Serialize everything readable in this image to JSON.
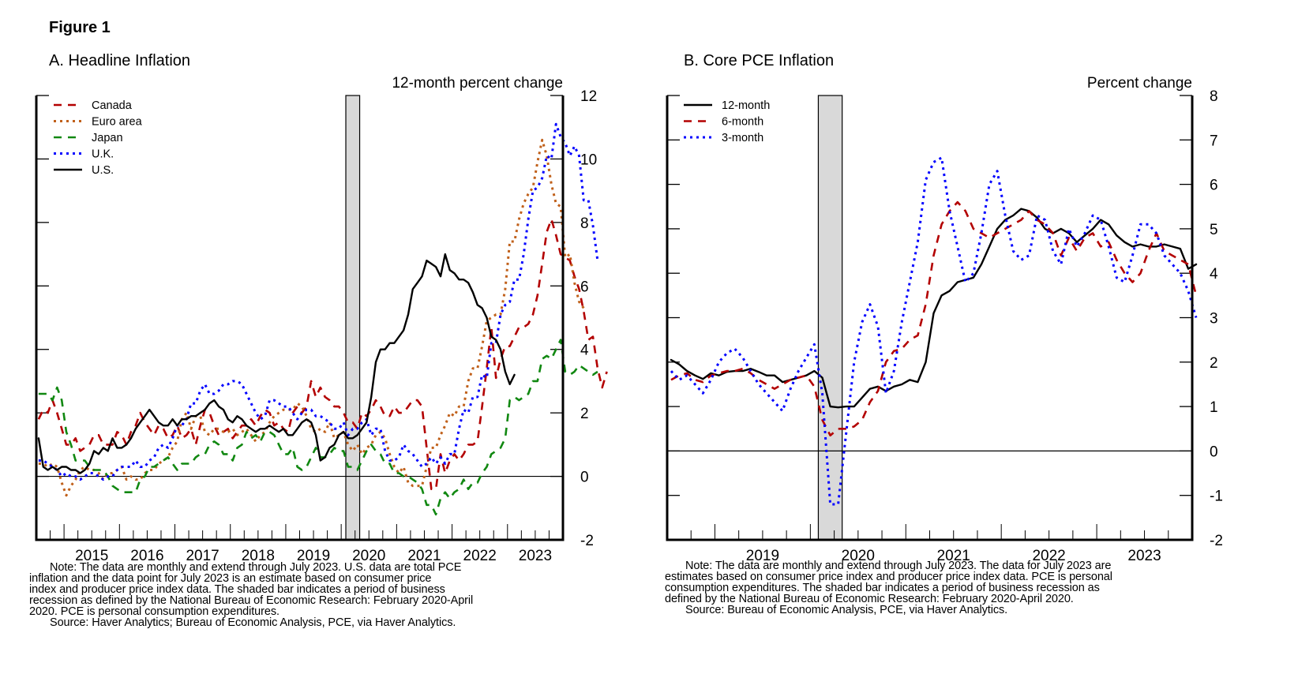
{
  "figure_title": "Figure 1",
  "chart_data": [
    {
      "id": "A",
      "type": "line",
      "title": "A. Headline Inflation",
      "ylabel": "12-month percent change",
      "xlabel": "",
      "ylim": [
        -2,
        12
      ],
      "yticks": [
        "12",
        "10",
        "8",
        "6",
        "4",
        "2",
        "0",
        "-2"
      ],
      "ytick_values": [
        12,
        10,
        8,
        6,
        4,
        2,
        0,
        -2
      ],
      "xlim": [
        "2014-07",
        "2023-12"
      ],
      "xtick_labels": [
        "2015",
        "2016",
        "2017",
        "2018",
        "2019",
        "2020",
        "2021",
        "2022",
        "2023"
      ],
      "recession": {
        "start": "2020-02",
        "end": "2020-04"
      },
      "legend_position": "top-left",
      "start_month": "2014-07",
      "series": [
        {
          "name": "Canada",
          "color": "#b30000",
          "style": "dashed",
          "values": [
            1.8,
            2.1,
            2.0,
            2.4,
            2.0,
            1.5,
            1.0,
            1.0,
            1.2,
            0.8,
            0.9,
            1.0,
            1.3,
            1.3,
            1.0,
            1.0,
            1.0,
            1.4,
            1.3,
            1.0,
            1.4,
            1.6,
            2.0,
            1.7,
            1.5,
            1.3,
            1.6,
            1.5,
            1.2,
            1.3,
            1.6,
            1.2,
            1.3,
            1.5,
            1.0,
            1.6,
            2.1,
            2.0,
            1.6,
            1.3,
            1.4,
            1.5,
            1.2,
            1.4,
            1.6,
            1.6,
            1.8,
            1.6,
            1.9,
            2.1,
            2.0,
            1.6,
            1.7,
            1.5,
            1.4,
            2.0,
            2.2,
            2.0,
            2.2,
            3.0,
            2.5,
            2.8,
            2.5,
            2.4,
            2.2,
            2.2,
            2.0,
            1.7,
            1.7,
            1.5,
            2.0,
            1.9,
            2.1,
            2.4,
            2.2,
            1.9,
            1.9,
            2.2,
            2.0,
            2.0,
            2.2,
            2.4,
            2.4,
            2.2,
            0.9,
            -0.4,
            -0.4,
            0.7,
            0.1,
            0.5,
            0.7,
            0.5,
            0.7,
            1.0,
            1.0,
            1.1,
            2.2,
            3.4,
            4.7,
            3.1,
            3.7,
            4.1,
            4.1,
            4.4,
            4.7,
            4.7,
            4.8,
            5.1,
            5.7,
            6.7,
            7.7,
            8.1,
            7.6,
            7.0,
            6.9,
            6.8,
            6.3,
            5.9,
            5.2,
            4.3,
            4.4,
            3.4,
            2.8,
            3.3
          ]
        },
        {
          "name": "Euro area",
          "color": "#c0601a",
          "style": "dotted",
          "values": [
            0.4,
            0.4,
            0.3,
            0.4,
            0.3,
            -0.2,
            -0.6,
            -0.3,
            -0.1,
            0.2,
            0.3,
            0.2,
            0.2,
            0.1,
            -0.1,
            0.1,
            0.1,
            0.2,
            0.3,
            -0.1,
            0.0,
            -0.1,
            -0.1,
            0.1,
            0.2,
            0.2,
            0.4,
            0.5,
            0.6,
            0.9,
            1.1,
            1.8,
            2.0,
            1.5,
            1.9,
            1.9,
            1.4,
            1.3,
            1.5,
            1.5,
            1.4,
            1.4,
            1.5,
            1.3,
            1.4,
            1.5,
            1.3,
            1.1,
            1.3,
            1.4,
            1.7,
            1.9,
            2.0,
            2.1,
            2.1,
            2.1,
            2.3,
            2.2,
            1.9,
            1.5,
            1.4,
            1.5,
            1.4,
            1.7,
            1.2,
            1.3,
            1.4,
            1.0,
            0.8,
            1.0,
            0.7,
            0.9,
            1.0,
            1.3,
            1.4,
            1.2,
            0.7,
            0.3,
            0.1,
            0.3,
            -0.2,
            -0.3,
            -0.3,
            -0.3,
            0.3,
            0.9,
            0.9,
            1.3,
            1.6,
            2.0,
            1.9,
            2.2,
            2.2,
            3.0,
            3.4,
            3.4,
            4.1,
            4.9,
            5.0,
            5.1,
            5.1,
            5.9,
            7.4,
            7.4,
            8.1,
            8.6,
            8.9,
            9.1,
            9.9,
            10.6,
            10.1,
            9.2,
            8.6,
            8.5,
            6.9,
            7.0,
            6.1,
            5.5,
            5.3
          ]
        },
        {
          "name": "Japan",
          "color": "#118811",
          "style": "dashed",
          "values": [
            2.6,
            2.6,
            2.6,
            2.4,
            2.8,
            2.4,
            1.4,
            1.0,
            0.5,
            0.5,
            0.5,
            0.3,
            0.2,
            0.2,
            0.2,
            0.0,
            -0.3,
            -0.4,
            -0.5,
            -0.5,
            -0.5,
            -0.5,
            -0.1,
            0.0,
            0.3,
            0.3,
            0.4,
            0.5,
            0.6,
            0.4,
            0.2,
            0.4,
            0.4,
            0.4,
            0.6,
            0.7,
            0.7,
            1.0,
            1.1,
            1.0,
            0.7,
            0.7,
            0.5,
            0.9,
            1.0,
            1.4,
            1.2,
            1.3,
            1.1,
            1.4,
            1.4,
            1.3,
            1.0,
            0.7,
            0.7,
            0.9,
            0.3,
            0.2,
            0.3,
            0.6,
            0.9,
            0.6,
            0.6,
            0.7,
            0.9,
            0.8,
            0.8,
            0.3,
            0.3,
            0.2,
            0.5,
            0.8,
            1.0,
            0.8,
            0.7,
            0.4,
            0.4,
            0.1,
            0.1,
            0.0,
            0.0,
            -0.1,
            -0.2,
            -0.4,
            -0.9,
            -0.9,
            -1.2,
            -0.7,
            -0.5,
            -0.7,
            -0.5,
            -0.4,
            -0.1,
            -0.4,
            -0.2,
            -0.2,
            0.1,
            0.3,
            0.7,
            0.8,
            0.9,
            1.2,
            2.4,
            2.5,
            2.4,
            2.5,
            2.6,
            3.0,
            3.0,
            3.7,
            3.8,
            3.7,
            4.0,
            4.3,
            3.3,
            3.2,
            3.3,
            3.5,
            3.4,
            3.3,
            3.2,
            3.3
          ]
        },
        {
          "name": "U.K.",
          "color": "#0000ff",
          "style": "dotted",
          "values": [
            0.5,
            0.5,
            0.4,
            0.3,
            0.2,
            0.0,
            0.1,
            0.0,
            0.0,
            -0.1,
            0.0,
            0.1,
            0.1,
            0.0,
            -0.1,
            0.0,
            0.0,
            0.2,
            0.3,
            0.3,
            0.3,
            0.5,
            0.3,
            0.3,
            0.5,
            0.6,
            0.9,
            1.0,
            0.9,
            1.2,
            1.6,
            1.6,
            1.8,
            2.3,
            2.3,
            2.7,
            2.9,
            2.6,
            2.6,
            2.7,
            2.9,
            2.9,
            3.0,
            3.0,
            2.9,
            2.6,
            2.3,
            2.0,
            1.8,
            1.9,
            2.4,
            2.4,
            2.3,
            2.2,
            2.2,
            2.0,
            1.8,
            2.0,
            2.1,
            2.1,
            1.9,
            1.9,
            1.8,
            1.7,
            1.5,
            1.5,
            1.7,
            1.3,
            1.5,
            1.5,
            1.7,
            1.8,
            1.3,
            1.5,
            1.5,
            0.8,
            0.5,
            0.5,
            0.6,
            1.0,
            0.8,
            0.7,
            0.5,
            0.3,
            0.4,
            0.6,
            0.4,
            0.6,
            0.4,
            0.7,
            0.7,
            1.5,
            2.1,
            2.0,
            2.5,
            2.5,
            3.2,
            3.1,
            4.2,
            4.2,
            5.1,
            5.4,
            5.5,
            6.2,
            6.2,
            7.0,
            8.1,
            9.0,
            9.1,
            9.4,
            10.1,
            10.0,
            11.1,
            10.7,
            10.5,
            10.1,
            10.4,
            10.1,
            8.7,
            8.7,
            7.9,
            6.8
          ]
        },
        {
          "name": "U.S.",
          "color": "#000000",
          "style": "solid",
          "values": [
            1.2,
            0.3,
            0.2,
            0.3,
            0.2,
            0.3,
            0.3,
            0.2,
            0.2,
            0.1,
            0.2,
            0.4,
            0.8,
            0.7,
            0.9,
            0.8,
            1.2,
            0.9,
            0.9,
            1.0,
            1.2,
            1.5,
            1.7,
            1.9,
            2.1,
            1.9,
            1.7,
            1.6,
            1.6,
            1.8,
            1.6,
            1.8,
            1.8,
            1.9,
            1.9,
            2.0,
            2.1,
            2.3,
            2.4,
            2.2,
            2.1,
            1.8,
            1.7,
            1.9,
            1.8,
            1.6,
            1.5,
            1.4,
            1.5,
            1.5,
            1.6,
            1.5,
            1.4,
            1.5,
            1.3,
            1.3,
            1.5,
            1.7,
            1.8,
            1.7,
            1.3,
            0.5,
            0.6,
            0.9,
            1.0,
            1.3,
            1.4,
            1.2,
            1.2,
            1.3,
            1.5,
            1.7,
            2.5,
            3.6,
            4.0,
            4.0,
            4.2,
            4.2,
            4.4,
            4.6,
            5.1,
            5.9,
            6.1,
            6.3,
            6.8,
            6.7,
            6.6,
            6.3,
            7.0,
            6.5,
            6.4,
            6.2,
            6.2,
            6.1,
            5.8,
            5.4,
            5.3,
            5.0,
            4.4,
            4.3,
            4.0,
            3.3,
            2.9,
            3.2
          ]
        }
      ]
    },
    {
      "id": "B",
      "type": "line",
      "title": "B. Core PCE Inflation",
      "ylabel": "Percent change",
      "xlabel": "",
      "ylim": [
        -2,
        8
      ],
      "yticks": [
        "8",
        "7",
        "6",
        "5",
        "4",
        "3",
        "2",
        "1",
        "0",
        "-1",
        "-2"
      ],
      "ytick_values": [
        8,
        7,
        6,
        5,
        4,
        3,
        2,
        1,
        0,
        -1,
        -2
      ],
      "xlim": [
        "2018-07",
        "2023-12"
      ],
      "xtick_labels": [
        "2019",
        "2020",
        "2021",
        "2022",
        "2023"
      ],
      "recession": {
        "start": "2020-02",
        "end": "2020-04"
      },
      "legend_position": "top-left",
      "start_month": "2018-07",
      "series": [
        {
          "name": "12-month",
          "color": "#000000",
          "style": "solid",
          "values": [
            2.05,
            1.95,
            1.8,
            1.7,
            1.62,
            1.75,
            1.7,
            1.78,
            1.8,
            1.8,
            1.85,
            1.78,
            1.7,
            1.7,
            1.55,
            1.6,
            1.65,
            1.7,
            1.8,
            1.65,
            1.0,
            0.98,
            1.0,
            1.0,
            1.2,
            1.4,
            1.45,
            1.35,
            1.45,
            1.5,
            1.6,
            1.55,
            2.0,
            3.1,
            3.5,
            3.6,
            3.8,
            3.85,
            3.9,
            4.2,
            4.6,
            5.0,
            5.2,
            5.3,
            5.45,
            5.4,
            5.25,
            5.0,
            4.9,
            5.0,
            4.9,
            4.7,
            4.85,
            5.0,
            5.2,
            5.1,
            4.85,
            4.7,
            4.6,
            4.65,
            4.6,
            4.6,
            4.65,
            4.6,
            4.55,
            4.1,
            4.2
          ]
        },
        {
          "name": "6-month",
          "color": "#b30000",
          "style": "dashed",
          "values": [
            1.6,
            1.7,
            1.75,
            1.6,
            1.55,
            1.7,
            1.75,
            1.8,
            1.8,
            1.85,
            1.75,
            1.6,
            1.5,
            1.4,
            1.5,
            1.6,
            1.65,
            1.7,
            1.45,
            0.7,
            0.35,
            0.5,
            0.5,
            0.55,
            0.7,
            1.1,
            1.35,
            2.0,
            2.25,
            2.3,
            2.5,
            2.6,
            3.3,
            4.4,
            5.1,
            5.4,
            5.6,
            5.4,
            5.0,
            4.9,
            4.8,
            4.9,
            5.0,
            5.1,
            5.2,
            5.4,
            5.2,
            5.1,
            4.9,
            4.4,
            4.8,
            4.5,
            4.8,
            4.9,
            4.6,
            4.7,
            4.3,
            4.0,
            3.8,
            4.0,
            4.5,
            4.9,
            4.5,
            4.4,
            4.3,
            4.2,
            3.5
          ]
        },
        {
          "name": "3-month",
          "color": "#0000ff",
          "style": "dotted",
          "values": [
            1.8,
            1.6,
            1.7,
            1.5,
            1.3,
            1.6,
            2.0,
            2.2,
            2.3,
            2.1,
            1.8,
            1.5,
            1.3,
            1.1,
            0.9,
            1.4,
            1.8,
            2.1,
            2.4,
            1.3,
            -1.2,
            -1.2,
            0.4,
            2.0,
            2.9,
            3.3,
            2.8,
            1.3,
            1.8,
            2.9,
            3.8,
            4.7,
            6.1,
            6.5,
            6.6,
            5.4,
            4.6,
            3.8,
            4.0,
            4.9,
            6.0,
            6.3,
            5.3,
            4.5,
            4.3,
            4.4,
            5.3,
            5.2,
            4.5,
            4.2,
            5.0,
            4.6,
            4.9,
            5.3,
            5.2,
            4.6,
            3.9,
            3.8,
            4.4,
            5.1,
            5.1,
            4.9,
            4.4,
            4.2,
            4.0,
            3.6,
            3.0
          ]
        }
      ]
    }
  ],
  "notes": {
    "A": {
      "note": "Note: The data are monthly and extend through July 2023. U.S. data are total PCE inflation and the data point for July 2023 is an estimate based on consumer price index and producer price index data. The shaded bar indicates a period of business recession as defined by the National Bureau of Economic Research: February 2020-April 2020. PCE is personal consumption expenditures.",
      "note_lines": [
        "Note: The data are monthly and extend through July 2023. U.S. data are total PCE",
        "inflation and the data point for July 2023 is an estimate based on consumer price",
        "index and producer price index data. The shaded bar indicates a period of business",
        "recession as defined by the National Bureau of Economic Research: February 2020-April",
        "2020. PCE is personal consumption expenditures."
      ],
      "source": "Source: Haver Analytics; Bureau of Economic Analysis, PCE, via Haver Analytics."
    },
    "B": {
      "note_lines": [
        "Note: The data are monthly and extend through July 2023. The data for July 2023 are",
        "estimates based on consumer price index and producer price index data. PCE is personal",
        "consumption expenditures. The shaded bar indicates a period of business recession as",
        "defined by the National Bureau of Economic Research: February 2020-April 2020."
      ],
      "source": "Source: Bureau of Economic Analysis, PCE, via Haver Analytics."
    }
  }
}
